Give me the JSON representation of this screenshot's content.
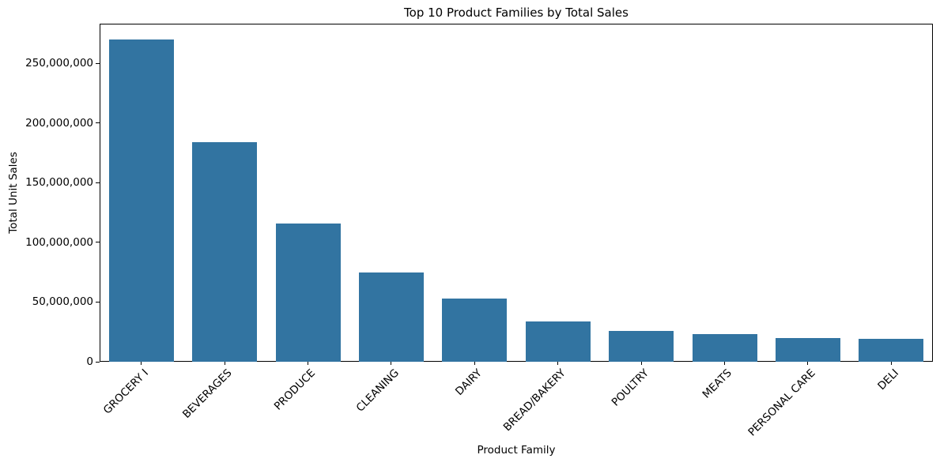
{
  "chart_data": {
    "type": "bar",
    "title": "Top 10 Product Families by Total Sales",
    "xlabel": "Product Family",
    "ylabel": "Total Unit Sales",
    "categories": [
      "GROCERY I",
      "BEVERAGES",
      "PRODUCE",
      "CLEANING",
      "DAIRY",
      "BREAD/BAKERY",
      "POULTRY",
      "MEATS",
      "PERSONAL CARE",
      "DELI"
    ],
    "values": [
      269800000,
      184100000,
      115700000,
      75100000,
      53200000,
      33500000,
      25600000,
      23400000,
      19900000,
      18900000
    ],
    "ylim": [
      0,
      283300000
    ],
    "yticks": [
      0,
      50000000,
      100000000,
      150000000,
      200000000,
      250000000
    ],
    "ytick_labels": [
      "0",
      "50,000,000",
      "100,000,000",
      "150,000,000",
      "200,000,000",
      "250,000,000"
    ],
    "x_tick_rotation_deg": 45,
    "grid": false,
    "legend": "none",
    "bar_color": "#3274a1",
    "axis_color": "#000000",
    "text_color": "#000000",
    "background_color": "#ffffff"
  }
}
